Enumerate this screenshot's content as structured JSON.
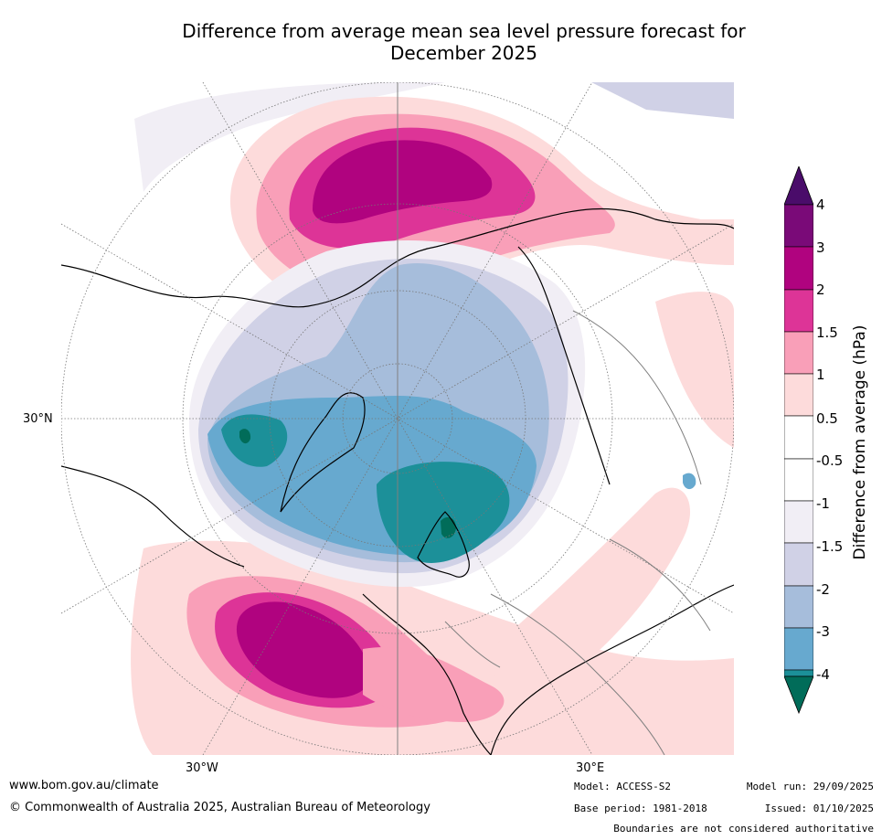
{
  "title": {
    "line1": "Difference from average mean sea level pressure forecast for",
    "line2": "December 2025"
  },
  "map": {
    "projection": "north-polar-stereographic",
    "labels": {
      "lat_30n": "30°N",
      "lon_30w": "30°W",
      "lon_30e": "30°E"
    }
  },
  "colorbar": {
    "title": "Difference from average (hPa)",
    "ticks": [
      "4",
      "3",
      "2",
      "1.5",
      "1",
      "0.5",
      "-0.5",
      "-1",
      "-1.5",
      "-2",
      "-3",
      "-4"
    ],
    "colors": {
      "gt4": "#4a0c6a",
      "c3_4": "#7a0a78",
      "c2_3": "#b0037f",
      "c15_2": "#dd3497",
      "c1_15": "#f99fb8",
      "c05_1": "#fddbdb",
      "c0": "#ffffff",
      "cm05_m1": "#f1eef5",
      "cm1_m15": "#d0d1e6",
      "cm15_m2": "#a6bddb",
      "cm2_m3": "#67a9cf",
      "cm3_m4": "#1c9099",
      "lt_m4": "#016c59"
    }
  },
  "footer": {
    "url": "www.bom.gov.au/climate",
    "copyright": "© Commonwealth of Australia 2025, Australian Bureau of Meteorology",
    "model": "Model: ACCESS-S2",
    "base_period": "Base period: 1981-2018",
    "model_run": "Model run: 29/09/2025",
    "issued": "Issued: 01/10/2025",
    "disclaimer": "Boundaries are not considered authoritative"
  }
}
